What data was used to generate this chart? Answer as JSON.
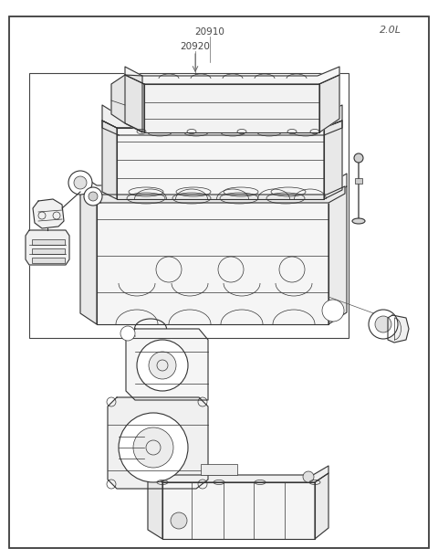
{
  "label_2ol": "2.0L",
  "label_20910": "20910",
  "label_20920": "20920",
  "bg_color": "#ffffff",
  "line_color": "#333333",
  "label_color": "#555555",
  "fig_width": 4.8,
  "fig_height": 6.12,
  "dpi": 100
}
